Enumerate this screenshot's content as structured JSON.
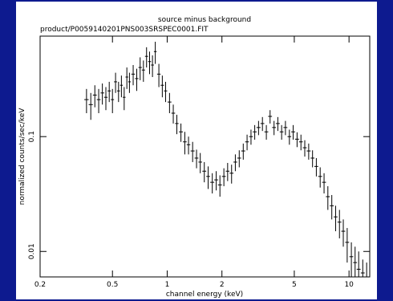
{
  "chart_data": {
    "type": "errorbar",
    "title": "source minus background",
    "subtitle": "product/P0059140201PNS003SRSPEC0001.FIT",
    "x_label": "channel energy (keV)",
    "y_label": "normalized counts/sec/keV",
    "log_x": true,
    "log_y": true,
    "xlim": [
      0.2,
      13
    ],
    "ylim": [
      0.006,
      0.75
    ],
    "xticks": [
      0.2,
      0.5,
      1,
      2,
      5,
      10
    ],
    "yticks": [
      0.01,
      0.1
    ],
    "color": "#000000",
    "x": [
      0.36,
      0.38,
      0.4,
      0.42,
      0.44,
      0.46,
      0.48,
      0.5,
      0.52,
      0.54,
      0.56,
      0.58,
      0.6,
      0.62,
      0.65,
      0.68,
      0.71,
      0.74,
      0.77,
      0.8,
      0.83,
      0.86,
      0.9,
      0.94,
      0.98,
      1.03,
      1.08,
      1.13,
      1.19,
      1.25,
      1.31,
      1.38,
      1.45,
      1.52,
      1.6,
      1.68,
      1.77,
      1.86,
      1.95,
      2.05,
      2.15,
      2.26,
      2.37,
      2.49,
      2.62,
      2.75,
      2.89,
      3.03,
      3.18,
      3.34,
      3.51,
      3.68,
      3.87,
      4.06,
      4.26,
      4.47,
      4.7,
      4.93,
      5.18,
      5.44,
      5.71,
      6.0,
      6.3,
      6.61,
      6.94,
      7.29,
      7.65,
      8.04,
      8.44,
      8.86,
      9.3,
      9.77,
      10.3,
      10.8,
      11.3,
      11.9,
      12.5
    ],
    "xerr": [
      0.01,
      0.01,
      0.01,
      0.01,
      0.01,
      0.01,
      0.01,
      0.01,
      0.01,
      0.01,
      0.01,
      0.01,
      0.01,
      0.01,
      0.015,
      0.015,
      0.015,
      0.015,
      0.015,
      0.015,
      0.015,
      0.015,
      0.02,
      0.02,
      0.02,
      0.025,
      0.025,
      0.025,
      0.03,
      0.03,
      0.03,
      0.035,
      0.035,
      0.035,
      0.04,
      0.04,
      0.045,
      0.045,
      0.05,
      0.05,
      0.05,
      0.055,
      0.055,
      0.06,
      0.065,
      0.065,
      0.07,
      0.075,
      0.08,
      0.08,
      0.085,
      0.09,
      0.095,
      0.1,
      0.1,
      0.11,
      0.11,
      0.12,
      0.13,
      0.13,
      0.14,
      0.15,
      0.15,
      0.16,
      0.17,
      0.18,
      0.19,
      0.2,
      0.2,
      0.22,
      0.23,
      0.24,
      0.25,
      0.26,
      0.28,
      0.3,
      0.3
    ],
    "values": [
      0.21,
      0.19,
      0.23,
      0.21,
      0.24,
      0.22,
      0.25,
      0.21,
      0.3,
      0.25,
      0.28,
      0.22,
      0.33,
      0.3,
      0.35,
      0.32,
      0.4,
      0.38,
      0.5,
      0.45,
      0.42,
      0.55,
      0.35,
      0.28,
      0.25,
      0.2,
      0.16,
      0.13,
      0.11,
      0.09,
      0.085,
      0.075,
      0.065,
      0.06,
      0.05,
      0.045,
      0.04,
      0.042,
      0.038,
      0.045,
      0.05,
      0.048,
      0.06,
      0.065,
      0.075,
      0.09,
      0.1,
      0.11,
      0.12,
      0.13,
      0.11,
      0.15,
      0.12,
      0.13,
      0.11,
      0.12,
      0.1,
      0.11,
      0.095,
      0.09,
      0.08,
      0.075,
      0.065,
      0.055,
      0.045,
      0.04,
      0.03,
      0.025,
      0.02,
      0.018,
      0.015,
      0.012,
      0.009,
      0.008,
      0.007,
      0.0065,
      0.006
    ],
    "yerr": [
      0.05,
      0.05,
      0.05,
      0.05,
      0.05,
      0.05,
      0.05,
      0.05,
      0.06,
      0.05,
      0.06,
      0.05,
      0.07,
      0.06,
      0.07,
      0.07,
      0.09,
      0.08,
      0.1,
      0.1,
      0.09,
      0.12,
      0.08,
      0.06,
      0.05,
      0.04,
      0.03,
      0.025,
      0.02,
      0.02,
      0.015,
      0.015,
      0.012,
      0.012,
      0.01,
      0.01,
      0.008,
      0.008,
      0.008,
      0.008,
      0.009,
      0.009,
      0.01,
      0.011,
      0.012,
      0.014,
      0.015,
      0.016,
      0.017,
      0.018,
      0.016,
      0.02,
      0.017,
      0.018,
      0.016,
      0.017,
      0.015,
      0.016,
      0.014,
      0.014,
      0.013,
      0.012,
      0.011,
      0.01,
      0.009,
      0.008,
      0.007,
      0.006,
      0.005,
      0.005,
      0.004,
      0.004,
      0.003,
      0.003,
      0.003,
      0.002,
      0.002
    ]
  }
}
